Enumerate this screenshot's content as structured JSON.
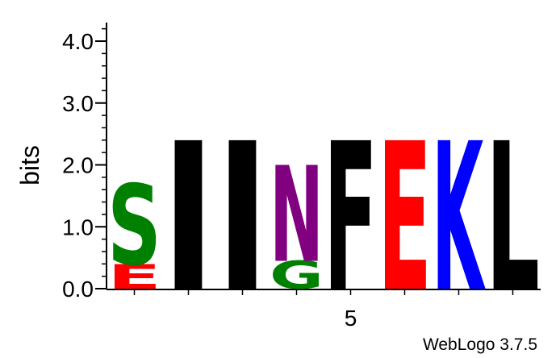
{
  "chart_data": {
    "type": "sequence-logo",
    "ylabel": "bits",
    "ylim": [
      0,
      4.3
    ],
    "y_ticks": [
      "0.0",
      "1.0",
      "2.0",
      "3.0",
      "4.0"
    ],
    "y_tick_values": [
      0,
      1,
      2,
      3,
      4
    ],
    "x_tick_labels": [
      {
        "position": 5,
        "label": "5"
      }
    ],
    "positions": [
      1,
      2,
      3,
      4,
      5,
      6,
      7,
      8
    ],
    "columns": [
      {
        "position": 1,
        "stack": [
          {
            "letter": "E",
            "bits": 0.4,
            "color": "#ff0000"
          },
          {
            "letter": "S",
            "bits": 1.3,
            "color": "#008000"
          }
        ]
      },
      {
        "position": 2,
        "stack": [
          {
            "letter": "I",
            "bits": 2.4,
            "color": "#000000"
          }
        ]
      },
      {
        "position": 3,
        "stack": [
          {
            "letter": "I",
            "bits": 2.4,
            "color": "#000000"
          }
        ]
      },
      {
        "position": 4,
        "stack": [
          {
            "letter": "G",
            "bits": 0.45,
            "color": "#008000"
          },
          {
            "letter": "N",
            "bits": 1.55,
            "color": "#800080"
          }
        ]
      },
      {
        "position": 5,
        "stack": [
          {
            "letter": "F",
            "bits": 2.4,
            "color": "#000000"
          }
        ]
      },
      {
        "position": 6,
        "stack": [
          {
            "letter": "E",
            "bits": 2.4,
            "color": "#ff0000"
          }
        ]
      },
      {
        "position": 7,
        "stack": [
          {
            "letter": "K",
            "bits": 2.4,
            "color": "#0000ff"
          }
        ]
      },
      {
        "position": 8,
        "stack": [
          {
            "letter": "L",
            "bits": 2.4,
            "color": "#000000"
          }
        ]
      }
    ]
  },
  "credit": "WebLogo 3.7.5"
}
